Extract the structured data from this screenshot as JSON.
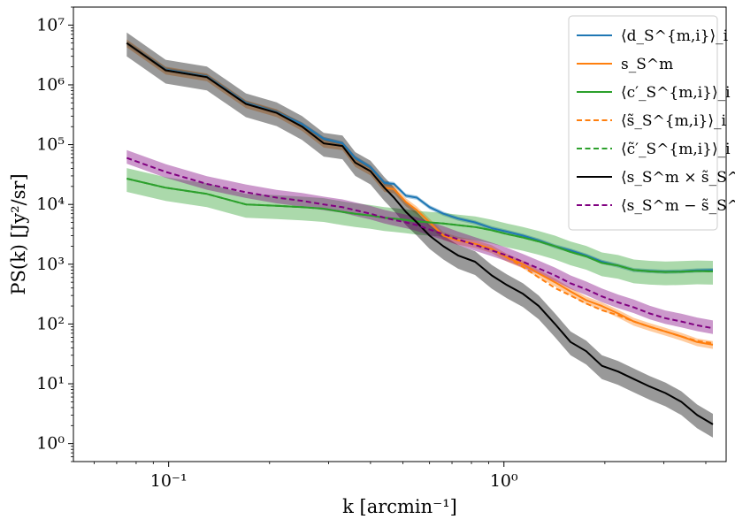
{
  "chart_data": {
    "type": "line",
    "xlabel": "k [arcmin⁻¹]",
    "ylabel": "PS(k) [Jy²/sr]",
    "xscale": "log",
    "yscale": "log",
    "xlim": [
      0.052,
      4.6
    ],
    "ylim": [
      0.5,
      20000000
    ],
    "grid": false,
    "legend_position": "top-right",
    "x_ticks": [
      {
        "value": 0.1,
        "label": "10⁻¹"
      },
      {
        "value": 1,
        "label": "10⁰"
      }
    ],
    "y_ticks": [
      {
        "value": 1,
        "label": "10⁰"
      },
      {
        "value": 10,
        "label": "10¹"
      },
      {
        "value": 100,
        "label": "10²"
      },
      {
        "value": 1000,
        "label": "10³"
      },
      {
        "value": 10000,
        "label": "10⁴"
      },
      {
        "value": 100000,
        "label": "10⁵"
      },
      {
        "value": 1000000,
        "label": "10⁶"
      },
      {
        "value": 10000000,
        "label": "10⁷"
      }
    ],
    "series": [
      {
        "name": "⟨d_S^{m,i}⟩_i",
        "color": "#1f77b4",
        "dashed": false,
        "band": [
          0.92,
          1.08
        ],
        "x": [
          0.075,
          0.098,
          0.13,
          0.17,
          0.21,
          0.25,
          0.29,
          0.33,
          0.36,
          0.4,
          0.44,
          0.47,
          0.51,
          0.55,
          0.6,
          0.66,
          0.73,
          0.82,
          0.92,
          1.02,
          1.14,
          1.27,
          1.42,
          1.58,
          1.76,
          1.96,
          2.19,
          2.44,
          2.72,
          3.03,
          3.38,
          3.77,
          4.2
        ],
        "y": [
          5000000.0,
          1800000.0,
          1380000.0,
          500000.0,
          350000.0,
          220000.0,
          125000.0,
          105000.0,
          60000.0,
          42000.0,
          23000.0,
          22000.0,
          14000.0,
          13000.0,
          9000.0,
          7000.0,
          5800.0,
          5000.0,
          4000.0,
          3500.0,
          3000.0,
          2500.0,
          2000.0,
          1700.0,
          1400.0,
          1100.0,
          950,
          800,
          770,
          750,
          760,
          790,
          800
        ]
      },
      {
        "name": "s_S^m",
        "color": "#ff7f0e",
        "dashed": false,
        "band": [
          0.85,
          1.15
        ],
        "x": [
          0.075,
          0.098,
          0.13,
          0.17,
          0.21,
          0.25,
          0.29,
          0.33,
          0.36,
          0.4,
          0.44,
          0.47,
          0.51,
          0.55,
          0.6,
          0.66,
          0.73,
          0.82,
          0.92,
          1.02,
          1.14,
          1.27,
          1.42,
          1.58,
          1.76,
          1.96,
          2.19,
          2.44,
          2.72,
          3.03,
          3.38,
          3.77,
          4.2
        ],
        "y": [
          5000000.0,
          1750000.0,
          1350000.0,
          480000.0,
          340000.0,
          200000.0,
          105000.0,
          95000.0,
          50000.0,
          36000.0,
          19000.0,
          18000.0,
          11000.0,
          8000.0,
          5000.0,
          3000.0,
          2500.0,
          2200.0,
          1800.0,
          1300.0,
          1000.0,
          700,
          500,
          350,
          250,
          200,
          150,
          110,
          90,
          75,
          62,
          50,
          45
        ]
      },
      {
        "name": "⟨c′_S^{m,i}⟩_i",
        "color": "#2ca02c",
        "dashed": false,
        "band": [
          0.6,
          1.5
        ],
        "x": [
          0.075,
          0.098,
          0.13,
          0.17,
          0.21,
          0.25,
          0.29,
          0.33,
          0.36,
          0.4,
          0.44,
          0.47,
          0.51,
          0.55,
          0.6,
          0.66,
          0.73,
          0.82,
          0.92,
          1.02,
          1.14,
          1.27,
          1.42,
          1.58,
          1.76,
          1.96,
          2.19,
          2.44,
          2.72,
          3.03,
          3.38,
          3.77,
          4.2
        ],
        "y": [
          27000.0,
          19000.0,
          15000.0,
          10000.0,
          9500.0,
          9000.0,
          8500.0,
          7500.0,
          7000.0,
          6500.0,
          6000.0,
          5800.0,
          5500.0,
          5200.0,
          5000.0,
          4800.0,
          4500.0,
          4200.0,
          3700.0,
          3200.0,
          2800.0,
          2400.0,
          2000.0,
          1600.0,
          1350.0,
          1050.0,
          950,
          800,
          760,
          740,
          750,
          770,
          760
        ]
      },
      {
        "name": "⟨s̃_S^{m,i}⟩_i",
        "color": "#ff7f0e",
        "dashed": true,
        "band": null,
        "x": [
          0.92,
          1.02,
          1.14,
          1.27,
          1.42,
          1.58,
          1.76,
          1.96,
          2.19,
          2.44,
          2.72,
          3.03,
          3.38,
          3.77,
          4.2
        ],
        "y": [
          1800.0,
          1300.0,
          900,
          600,
          400,
          300,
          220,
          170,
          140,
          110,
          90,
          75,
          62,
          52,
          48
        ]
      },
      {
        "name": "⟨c̃′_S^{m,i}⟩_i",
        "color": "#2ca02c",
        "dashed": true,
        "band": null,
        "x": [
          0.075,
          0.098,
          0.13,
          0.17,
          0.21,
          0.25,
          0.29,
          0.33,
          0.36,
          0.4,
          0.44,
          0.47,
          0.51,
          0.55,
          0.6,
          0.66,
          0.73,
          0.82,
          0.92,
          1.02,
          1.14,
          1.27,
          1.42,
          1.58,
          1.76,
          1.96,
          2.19,
          2.44,
          2.72,
          3.03,
          3.38,
          3.77,
          4.2
        ],
        "y": [
          27000.0,
          19000.0,
          15000.0,
          10000.0,
          9500.0,
          9000.0,
          8500.0,
          7500.0,
          7000.0,
          6500.0,
          6000.0,
          5800.0,
          5500.0,
          5200.0,
          5000.0,
          4800.0,
          4500.0,
          4200.0,
          3700.0,
          3200.0,
          2800.0,
          2400.0,
          2000.0,
          1600.0,
          1350.0,
          1050.0,
          950,
          800,
          760,
          740,
          750,
          770,
          760
        ]
      },
      {
        "name": "⟨s_S^m × s̃_S^{m,i}⟩_i",
        "color": "#000000",
        "dashed": false,
        "band": [
          0.6,
          1.5
        ],
        "x": [
          0.075,
          0.098,
          0.13,
          0.17,
          0.21,
          0.25,
          0.29,
          0.33,
          0.36,
          0.4,
          0.44,
          0.47,
          0.51,
          0.55,
          0.6,
          0.66,
          0.73,
          0.82,
          0.92,
          1.02,
          1.14,
          1.27,
          1.42,
          1.58,
          1.76,
          1.96,
          2.19,
          2.44,
          2.72,
          3.03,
          3.38,
          3.77,
          4.2
        ],
        "y": [
          5000000.0,
          1750000.0,
          1350000.0,
          480000.0,
          340000.0,
          200000.0,
          105000.0,
          95000.0,
          50000.0,
          36000.0,
          19000.0,
          13000.0,
          7500.0,
          5000.0,
          3000.0,
          2000.0,
          1400.0,
          1100.0,
          650,
          450,
          320,
          200,
          100,
          50,
          35,
          20,
          16,
          12,
          9,
          7,
          5,
          3,
          2.1
        ]
      },
      {
        "name": "⟨s_S^m − s̃_S^{m,i}⟩_i",
        "color": "#800080",
        "dashed": true,
        "band": [
          0.8,
          1.35
        ],
        "x": [
          0.075,
          0.098,
          0.13,
          0.17,
          0.21,
          0.25,
          0.29,
          0.33,
          0.36,
          0.4,
          0.44,
          0.47,
          0.51,
          0.55,
          0.6,
          0.66,
          0.73,
          0.82,
          0.92,
          1.02,
          1.14,
          1.27,
          1.42,
          1.58,
          1.76,
          1.96,
          2.19,
          2.44,
          2.72,
          3.03,
          3.38,
          3.77,
          4.2
        ],
        "y": [
          60000.0,
          35000.0,
          22000.0,
          16000.0,
          13000.0,
          11500.0,
          10000.0,
          9000.0,
          8000.0,
          7000.0,
          6000.0,
          5500.0,
          5000.0,
          4500.0,
          3800.0,
          3200.0,
          2600.0,
          2100.0,
          1700.0,
          1400.0,
          1100.0,
          850,
          650,
          480,
          380,
          290,
          230,
          190,
          150,
          125,
          110,
          95,
          85
        ]
      }
    ]
  }
}
